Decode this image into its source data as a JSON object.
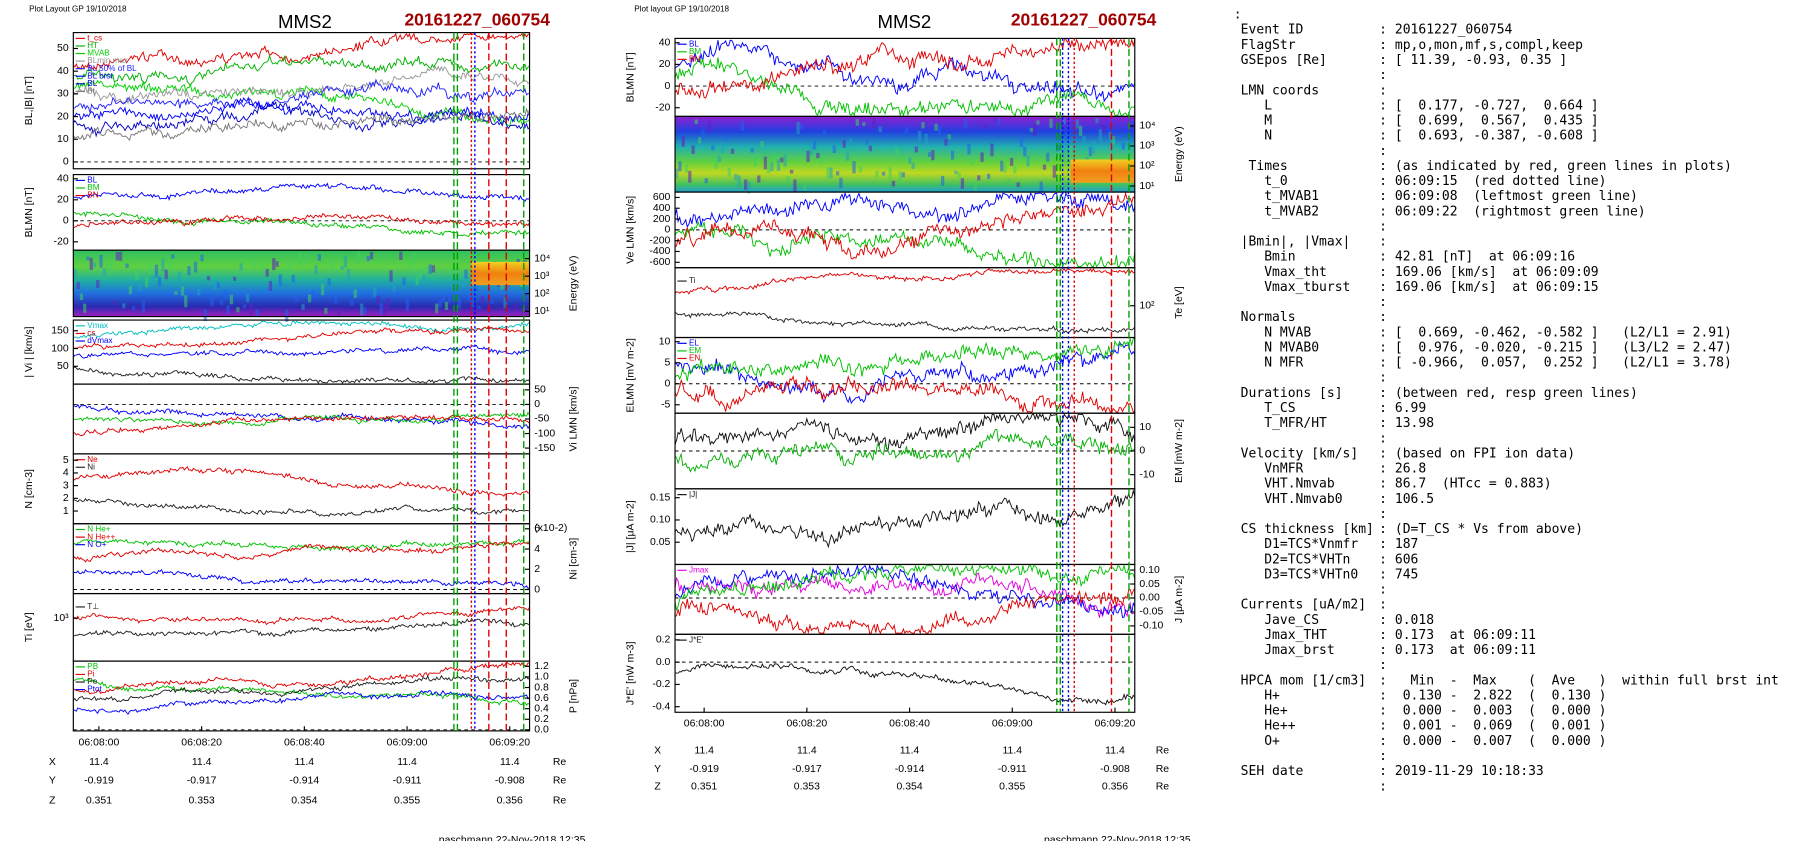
{
  "plots": [
    {
      "layout_title": "Plot Layout GP 19/10/2018",
      "spacecraft": "MMS2",
      "event": "20161227_060754",
      "footer": "paschmann 22-Nov-2018 12:35",
      "time_ticks": [
        "06:08:00",
        "06:08:20",
        "06:08:40",
        "06:09:00",
        "06:09:20"
      ],
      "position": [
        {
          "label": "X",
          "values": [
            11.4,
            11.4,
            11.4,
            11.4,
            11.4
          ],
          "unit": "Re"
        },
        {
          "label": "Y",
          "values": [
            -0.919,
            -0.917,
            -0.914,
            -0.911,
            -0.908
          ],
          "unit": "Re"
        },
        {
          "label": "Z",
          "values": [
            0.351,
            0.353,
            0.354,
            0.355,
            0.356
          ],
          "unit": "Re"
        }
      ],
      "panels": [
        {
          "kind": "line",
          "ylabel": "BL,|B| [nT]",
          "axis": "left",
          "ylim": [
            -3,
            57
          ],
          "yticks": [
            0,
            10,
            20,
            30,
            40,
            50
          ],
          "series": [
            {
              "name": "t_cs",
              "color": "#e00000"
            },
            {
              "name": "HT",
              "color": "#00b000"
            },
            {
              "name": "MVAB",
              "color": "#00d000"
            },
            {
              "name": "BLmin max",
              "color": "#999999"
            },
            {
              "name": "BL 50% of BL",
              "color": "#2020ff"
            },
            {
              "name": "BL brst",
              "color": "#0000ff"
            },
            {
              "name": "BL",
              "color": "#0000cc"
            },
            {
              "name": "Bt",
              "color": "#777777"
            }
          ]
        },
        {
          "kind": "line",
          "ylabel": "BLMN [nT]",
          "axis": "left",
          "ylim": [
            -28,
            44
          ],
          "yticks": [
            -20,
            0,
            20,
            40
          ],
          "series": [
            {
              "name": "BL",
              "color": "#0000ff"
            },
            {
              "name": "BM",
              "color": "#00c000"
            },
            {
              "name": "BN",
              "color": "#e00000"
            }
          ]
        },
        {
          "kind": "spectrogram",
          "ylabel": "Energy (eV)",
          "axis": "right",
          "log": true,
          "ylim": [
            5,
            30000
          ],
          "yticks": [
            {
              "value": 10,
              "label": "10¹"
            },
            {
              "value": 100,
              "label": "10²"
            },
            {
              "value": 1000,
              "label": "10³"
            },
            {
              "value": 10000,
              "label": "10⁴"
            }
          ]
        },
        {
          "kind": "line",
          "ylabel": "| Vi | [km/s]",
          "axis": "left",
          "ylim": [
            0,
            180
          ],
          "yticks": [
            50,
            100,
            150
          ],
          "series": [
            {
              "name": "Vmax",
              "color": "#00c0c0"
            },
            {
              "name": "cs",
              "color": "#e00000"
            },
            {
              "name": "dVmax",
              "color": "#0000ff"
            },
            {
              "color": "#222222"
            }
          ]
        },
        {
          "kind": "line",
          "ylabel": "Vi LMN [km/s]",
          "axis": "right",
          "ylim": [
            -170,
            70
          ],
          "yticks": [
            -150,
            -100,
            -50,
            0,
            50
          ],
          "series": [
            {
              "color": "#0000ff"
            },
            {
              "color": "#00c000"
            },
            {
              "color": "#e00000"
            }
          ]
        },
        {
          "kind": "line",
          "ylabel": "N [cm-3]",
          "axis": "left",
          "ylim": [
            0,
            5.5
          ],
          "yticks": [
            1,
            2,
            3,
            4,
            5
          ],
          "series": [
            {
              "name": "Ne",
              "color": "#e00000"
            },
            {
              "name": "Ni",
              "color": "#222222"
            }
          ]
        },
        {
          "kind": "line",
          "ylabel": "Ni [cm-3]",
          "axis": "right",
          "note": "(x10-2)",
          "ylim": [
            -0.4,
            6.5
          ],
          "yticks": [
            0,
            2,
            4,
            6
          ],
          "series": [
            {
              "name": "N He+",
              "color": "#00c000"
            },
            {
              "name": "N He++",
              "color": "#e00000"
            },
            {
              "name": "N O+",
              "color": "#0000ff"
            }
          ]
        },
        {
          "kind": "line",
          "ylabel": "Ti [eV]",
          "axis": "left",
          "log": true,
          "ylim": [
            300,
            2000
          ],
          "yticks": [
            {
              "value": 1000,
              "label": "10³"
            }
          ],
          "series": [
            {
              "color": "#e00000"
            },
            {
              "name": "T⊥",
              "color": "#222222"
            }
          ]
        },
        {
          "kind": "line",
          "ylabel": "P [nPa]",
          "axis": "right",
          "ylim": [
            -0.02,
            1.3
          ],
          "yticks": [
            {
              "value": 0,
              "label": "0.0"
            },
            0.2,
            0.4,
            0.6,
            0.8,
            {
              "value": 1,
              "label": "1.0"
            },
            1.2
          ],
          "series": [
            {
              "name": "PB",
              "color": "#00c000"
            },
            {
              "name": "Pi",
              "color": "#e00000"
            },
            {
              "name": "Pe",
              "color": "#222222"
            },
            {
              "name": "Ptot",
              "color": "#0000ff"
            }
          ]
        }
      ]
    },
    {
      "layout_title": "Plot layout GP 19/10/2018",
      "spacecraft": "MMS2",
      "event": "20161227_060754",
      "footer": "paschmann 22-Nov-2018 12:35",
      "time_ticks": [
        "06:08:00",
        "06:08:20",
        "06:08:40",
        "06:09:00",
        "06:09:20"
      ],
      "position": [
        {
          "label": "X",
          "values": [
            11.4,
            11.4,
            11.4,
            11.4,
            11.4
          ],
          "unit": "Re"
        },
        {
          "label": "Y",
          "values": [
            -0.919,
            -0.917,
            -0.914,
            -0.911,
            -0.908
          ],
          "unit": "Re"
        },
        {
          "label": "Z",
          "values": [
            0.351,
            0.353,
            0.354,
            0.355,
            0.356
          ],
          "unit": "Re"
        }
      ],
      "panels": [
        {
          "kind": "line",
          "ylabel": "BLMN [nT]",
          "axis": "left",
          "ylim": [
            -28,
            44
          ],
          "yticks": [
            -20,
            0,
            20,
            40
          ],
          "series": [
            {
              "name": "BL",
              "color": "#0000ff"
            },
            {
              "name": "BM",
              "color": "#00c000"
            },
            {
              "name": "BN",
              "color": "#e00000"
            }
          ]
        },
        {
          "kind": "spectrogram",
          "ylabel": "Energy (eV)",
          "axis": "right",
          "log": true,
          "ylim": [
            5,
            30000
          ],
          "yticks": [
            {
              "value": 10,
              "label": "10¹"
            },
            {
              "value": 100,
              "label": "10²"
            },
            {
              "value": 1000,
              "label": "10³"
            },
            {
              "value": 10000,
              "label": "10⁴"
            }
          ]
        },
        {
          "kind": "line",
          "ylabel": "Ve LMN [km/s]",
          "axis": "left",
          "ylim": [
            -700,
            700
          ],
          "yticks": [
            -600,
            -400,
            -200,
            0,
            200,
            400,
            600
          ],
          "series": [
            {
              "color": "#0000ff"
            },
            {
              "color": "#00c000"
            },
            {
              "color": "#e00000"
            }
          ]
        },
        {
          "kind": "line",
          "ylabel": "Te [eV]",
          "axis": "right",
          "log": true,
          "ylim": [
            40,
            300
          ],
          "yticks": [
            {
              "value": 100,
              "label": "10²"
            }
          ],
          "series": [
            {
              "color": "#e00000"
            },
            {
              "name": "Ti",
              "color": "#222222"
            }
          ]
        },
        {
          "kind": "line",
          "ylabel": "ELMN [mV m-2]",
          "axis": "left",
          "ylim": [
            -7,
            11
          ],
          "yticks": [
            -5,
            0,
            5,
            10
          ],
          "series": [
            {
              "name": "EL",
              "color": "#0000ff"
            },
            {
              "name": "EM",
              "color": "#00c000"
            },
            {
              "name": "EN",
              "color": "#e00000"
            }
          ]
        },
        {
          "kind": "line",
          "ylabel": "EM [mW m-2]",
          "axis": "right",
          "ylim": [
            -16,
            16
          ],
          "yticks": [
            -10,
            0,
            10
          ],
          "series": [
            {
              "color": "#111111"
            },
            {
              "color": "#00b000"
            }
          ]
        },
        {
          "kind": "line",
          "ylabel": "|J| [μA m-2]",
          "axis": "left",
          "ylim": [
            0,
            0.17
          ],
          "yticks": [
            0.05,
            {
              "value": 0.1,
              "label": "0.10"
            },
            0.15
          ],
          "series": [
            {
              "name": "|J|",
              "color": "#111111"
            }
          ]
        },
        {
          "kind": "line",
          "ylabel": "J [μA m-2]",
          "axis": "right",
          "ylim": [
            -0.13,
            0.12
          ],
          "yticks": [
            {
              "value": -0.1,
              "label": "-0.10"
            },
            -0.05,
            {
              "value": 0,
              "label": "0.00"
            },
            0.05,
            {
              "value": 0.1,
              "label": "0.10"
            }
          ],
          "series": [
            {
              "name": "Jmax",
              "color": "#e000e0"
            },
            {
              "color": "#0000ff"
            },
            {
              "color": "#00c000"
            },
            {
              "color": "#e00000"
            }
          ]
        },
        {
          "kind": "line",
          "ylabel": "J*E' [nW m-3]",
          "axis": "left",
          "ylim": [
            -0.45,
            0.25
          ],
          "yticks": [
            -0.4,
            -0.2,
            {
              "value": 0,
              "label": "0.0"
            },
            0.2
          ],
          "series": [
            {
              "name": "J*E'",
              "color": "#111111"
            }
          ]
        }
      ]
    }
  ],
  "text_panel": {
    "lines": [
      {
        "value": ":"
      },
      {
        "key": "Event ID",
        "value": ": 20161227_060754"
      },
      {
        "key": "FlagStr",
        "value": ": mp,o,mon,mf,s,compl,keep"
      },
      {
        "key": "GSEpos [Re]",
        "value": ": [ 11.39, -0.93, 0.35 ]"
      },
      {
        "value": ":"
      },
      {
        "key": "LMN coords",
        "value": ":"
      },
      {
        "key": "   L",
        "value": ": [  0.177, -0.727,  0.664 ]"
      },
      {
        "key": "   M",
        "value": ": [  0.699,  0.567,  0.435 ]"
      },
      {
        "key": "   N",
        "value": ": [  0.693, -0.387, -0.608 ]"
      },
      {
        "value": ":"
      },
      {
        "key": " Times",
        "value": ": (as indicated by red, green lines in plots)"
      },
      {
        "key": "   t_0",
        "value": ": 06:09:15  (red dotted line)"
      },
      {
        "key": "   t_MVAB1",
        "value": ": 06:09:08  (leftmost green line)"
      },
      {
        "key": "   t_MVAB2",
        "value": ": 06:09:22  (rightmost green line)"
      },
      {
        "value": ":"
      },
      {
        "key": "|Bmin|, |Vmax|",
        "value": ":"
      },
      {
        "key": "   Bmin",
        "value": ": 42.81 [nT]  at 06:09:16"
      },
      {
        "key": "   Vmax_tht",
        "value": ": 169.06 [km/s]  at 06:09:09"
      },
      {
        "key": "   Vmax_tburst",
        "value": ": 169.06 [km/s]  at 06:09:15"
      },
      {
        "value": ":"
      },
      {
        "key": "Normals",
        "value": ":"
      },
      {
        "key": "   N MVAB",
        "value": ": [  0.669, -0.462, -0.582 ]   (L2/L1 = 2.91)"
      },
      {
        "key": "   N MVAB0",
        "value": ": [  0.976, -0.020, -0.215 ]   (L3/L2 = 2.47)"
      },
      {
        "key": "   N MFR",
        "value": ": [ -0.966,  0.057,  0.252 ]   (L2/L1 = 3.78)"
      },
      {
        "value": ":"
      },
      {
        "key": "Durations [s]",
        "value": ": (between red, resp green lines)"
      },
      {
        "key": "   T_CS",
        "value": ": 6.99"
      },
      {
        "key": "   T_MFR/HT",
        "value": ": 13.98"
      },
      {
        "value": ":"
      },
      {
        "key": "Velocity [km/s]",
        "value": ": (based on FPI ion data)"
      },
      {
        "key": "   VnMFR",
        "value": ": 26.8"
      },
      {
        "key": "   VHT.Nmvab",
        "value": ": 86.7  (HTcc = 0.883)"
      },
      {
        "key": "   VHT.Nmvab0",
        "value": ": 106.5"
      },
      {
        "value": ":"
      },
      {
        "key": "CS thickness [km]",
        "value": ": (D=T_CS * Vs from above)"
      },
      {
        "key": "   D1=TCS*Vnmfr",
        "value": ": 187"
      },
      {
        "key": "   D2=TCS*VHTn",
        "value": ": 606"
      },
      {
        "key": "   D3=TCS*VHTn0",
        "value": ": 745"
      },
      {
        "value": ":"
      },
      {
        "key": "Currents [uA/m2]",
        "value": ":"
      },
      {
        "key": "   Jave_CS",
        "value": ": 0.018"
      },
      {
        "key": "   Jmax_THT",
        "value": ": 0.173  at 06:09:11"
      },
      {
        "key": "   Jmax_brst",
        "value": ": 0.173  at 06:09:11"
      },
      {
        "value": ":"
      },
      {
        "key": "HPCA mom [1/cm3]",
        "value": ":   Min  -  Max    (  Ave   )  within full brst int"
      },
      {
        "key": "   H+",
        "value": ":  0.130 -  2.822  (  0.130 )"
      },
      {
        "key": "   He+",
        "value": ":  0.000 -  0.003  (  0.000 )"
      },
      {
        "key": "   He++",
        "value": ":  0.001 -  0.069  (  0.001 )"
      },
      {
        "key": "   O+",
        "value": ":  0.000 -  0.007  (  0.000 )"
      },
      {
        "value": ":"
      },
      {
        "key": "SEH date",
        "value": ": 2019-11-29 10:18:33"
      },
      {
        "value": ":"
      }
    ]
  }
}
